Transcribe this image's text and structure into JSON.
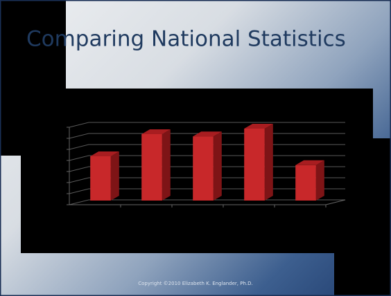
{
  "title": "Comparing National Statistics",
  "footer": "Copyright ©2010 Elizabeth K. Englander, Ph.D.",
  "chart_data": {
    "type": "bar",
    "categories": [
      null,
      null,
      null,
      null,
      null
    ],
    "values": [
      4,
      6,
      5.8,
      6.5,
      3.2
    ],
    "color": "#c8282a",
    "ylim": [
      0,
      7
    ],
    "yticks": [
      0,
      1,
      2,
      3,
      4,
      5,
      6,
      7
    ],
    "grid": true
  }
}
